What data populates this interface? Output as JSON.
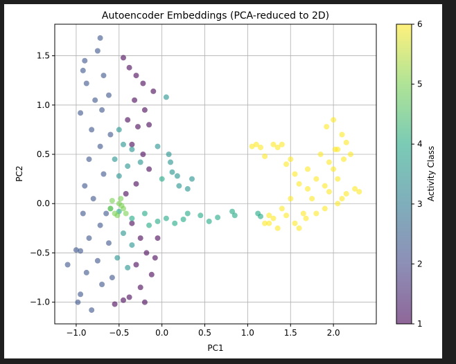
{
  "colors": {
    "frame_background": "#1f1f1f",
    "figure_background": "#ffffff",
    "grid": "#b0b0b0",
    "colormap": "viridis"
  },
  "chart_data": {
    "type": "scatter",
    "title": "Autoencoder Embeddings (PCA-reduced to 2D)",
    "xlabel": "PC1",
    "ylabel": "PC2",
    "xlim": [
      -1.25,
      2.5
    ],
    "ylim": [
      -1.22,
      1.82
    ],
    "xticks": [
      -1.0,
      -0.5,
      0.0,
      0.5,
      1.0,
      1.5,
      2.0
    ],
    "xtick_labels": [
      "−1.0",
      "−0.5",
      "0.0",
      "0.5",
      "1.0",
      "1.5",
      "2.0"
    ],
    "yticks": [
      -1.0,
      -0.5,
      0.0,
      0.5,
      1.0,
      1.5
    ],
    "ytick_labels": [
      "−1.0",
      "−0.5",
      "0.0",
      "0.5",
      "1.0",
      "1.5"
    ],
    "grid": true,
    "marker_alpha": 0.6,
    "colorbar": {
      "label": "Activity Class",
      "range": [
        1,
        6
      ],
      "ticks": [
        1,
        2,
        3,
        4,
        5,
        6
      ],
      "tick_labels": [
        "1",
        "2",
        "3",
        "4",
        "5",
        "6"
      ],
      "colormap": "viridis"
    },
    "series": [
      {
        "class": 1,
        "color": "#440154",
        "points": [
          [
            -0.45,
            1.48
          ],
          [
            -0.38,
            1.38
          ],
          [
            -0.3,
            1.3
          ],
          [
            -0.22,
            1.22
          ],
          [
            -0.1,
            1.14
          ],
          [
            -0.2,
            0.95
          ],
          [
            -0.28,
            0.78
          ],
          [
            -0.15,
            0.8
          ],
          [
            -0.35,
            0.6
          ],
          [
            -0.22,
            0.5
          ],
          [
            -0.15,
            0.35
          ],
          [
            -0.3,
            0.2
          ],
          [
            -0.42,
            0.1
          ],
          [
            -0.25,
            -0.35
          ],
          [
            -0.18,
            -0.5
          ],
          [
            -0.3,
            -0.62
          ],
          [
            -0.12,
            -0.72
          ],
          [
            -0.25,
            -0.85
          ],
          [
            -0.38,
            -0.95
          ],
          [
            -0.55,
            -1.02
          ],
          [
            -0.45,
            -0.98
          ],
          [
            -0.2,
            -1.0
          ],
          [
            -0.32,
            1.05
          ],
          [
            -0.4,
            0.85
          ],
          [
            -0.08,
            -0.55
          ],
          [
            -0.05,
            -0.35
          ],
          [
            -0.35,
            -0.2
          ]
        ]
      },
      {
        "class": 2,
        "color": "#3b528b",
        "points": [
          [
            -0.72,
            1.68
          ],
          [
            -0.75,
            1.55
          ],
          [
            -0.92,
            1.35
          ],
          [
            -0.88,
            1.22
          ],
          [
            -0.68,
            1.3
          ],
          [
            -0.78,
            1.05
          ],
          [
            -0.95,
            0.92
          ],
          [
            -0.82,
            0.75
          ],
          [
            -0.72,
            0.58
          ],
          [
            -0.85,
            0.45
          ],
          [
            -0.68,
            0.3
          ],
          [
            -0.9,
            0.18
          ],
          [
            -0.8,
            0.05
          ],
          [
            -0.92,
            -0.1
          ],
          [
            -0.72,
            -0.22
          ],
          [
            -0.85,
            -0.35
          ],
          [
            -0.95,
            -0.48
          ],
          [
            -0.75,
            -0.58
          ],
          [
            -0.88,
            -0.7
          ],
          [
            -0.7,
            -0.82
          ],
          [
            -0.95,
            -0.92
          ],
          [
            -1.0,
            -0.47
          ],
          [
            -0.98,
            -1.0
          ],
          [
            -0.82,
            -1.08
          ],
          [
            -1.1,
            -0.62
          ],
          [
            -0.62,
            1.1
          ],
          [
            -0.6,
            0.7
          ],
          [
            -0.65,
            -0.1
          ],
          [
            -0.62,
            -0.4
          ],
          [
            -0.58,
            -0.75
          ],
          [
            -0.9,
            1.45
          ],
          [
            -0.7,
            0.95
          ]
        ]
      },
      {
        "class": 3,
        "color": "#21918c",
        "points": [
          [
            -0.5,
            0.75
          ],
          [
            -0.45,
            0.6
          ],
          [
            -0.55,
            0.45
          ],
          [
            -0.4,
            0.38
          ],
          [
            -0.5,
            0.28
          ],
          [
            -0.35,
            0.55
          ],
          [
            -0.25,
            0.42
          ],
          [
            -0.45,
            -0.3
          ],
          [
            -0.35,
            -0.42
          ],
          [
            -0.52,
            -0.55
          ],
          [
            -0.4,
            -0.65
          ],
          [
            0.05,
            1.08
          ],
          [
            0.1,
            0.42
          ],
          [
            0.12,
            0.32
          ],
          [
            0.18,
            0.28
          ],
          [
            0.3,
            0.15
          ],
          [
            0.2,
            0.18
          ],
          [
            0.35,
            0.25
          ],
          [
            0.08,
            0.5
          ],
          [
            -0.05,
            0.58
          ]
        ]
      },
      {
        "class": 4,
        "color": "#22a884",
        "points": [
          [
            -0.6,
            -0.05
          ],
          [
            -0.5,
            -0.08
          ],
          [
            -0.35,
            -0.15
          ],
          [
            -0.2,
            -0.1
          ],
          [
            -0.05,
            -0.18
          ],
          [
            0.05,
            -0.15
          ],
          [
            0.15,
            -0.2
          ],
          [
            0.25,
            -0.16
          ],
          [
            0.3,
            -0.1
          ],
          [
            0.45,
            -0.12
          ],
          [
            0.55,
            -0.18
          ],
          [
            0.65,
            -0.14
          ],
          [
            0.82,
            -0.08
          ],
          [
            0.85,
            -0.12
          ],
          [
            0.0,
            0.25
          ],
          [
            1.12,
            -0.1
          ],
          [
            1.15,
            -0.13
          ],
          [
            -0.15,
            -0.22
          ]
        ]
      },
      {
        "class": 5,
        "color": "#7ad151",
        "points": [
          [
            -0.5,
            0.0
          ],
          [
            -0.45,
            -0.05
          ],
          [
            -0.55,
            -0.1
          ],
          [
            -0.48,
            0.05
          ],
          [
            -0.58,
            0.03
          ],
          [
            -0.42,
            -0.1
          ],
          [
            -0.52,
            -0.12
          ],
          [
            -0.6,
            -0.05
          ],
          [
            -0.47,
            -0.02
          ]
        ]
      },
      {
        "class": 6,
        "color": "#fde725",
        "points": [
          [
            1.05,
            0.58
          ],
          [
            1.1,
            0.6
          ],
          [
            1.15,
            0.57
          ],
          [
            1.3,
            0.6
          ],
          [
            1.35,
            0.57
          ],
          [
            1.4,
            0.6
          ],
          [
            1.2,
            0.48
          ],
          [
            1.45,
            0.4
          ],
          [
            1.55,
            0.3
          ],
          [
            1.6,
            0.2
          ],
          [
            1.7,
            0.15
          ],
          [
            1.8,
            0.25
          ],
          [
            1.9,
            0.18
          ],
          [
            2.0,
            0.35
          ],
          [
            2.05,
            0.55
          ],
          [
            2.0,
            0.85
          ],
          [
            2.1,
            0.7
          ],
          [
            2.15,
            0.62
          ],
          [
            2.12,
            0.45
          ],
          [
            2.25,
            0.15
          ],
          [
            2.3,
            0.12
          ],
          [
            1.85,
            0.5
          ],
          [
            1.95,
            0.42
          ],
          [
            1.7,
            0.35
          ],
          [
            1.5,
            0.05
          ],
          [
            1.4,
            -0.05
          ],
          [
            1.3,
            -0.15
          ],
          [
            1.2,
            -0.2
          ],
          [
            1.25,
            -0.2
          ],
          [
            1.45,
            -0.12
          ],
          [
            1.55,
            -0.2
          ],
          [
            1.6,
            -0.25
          ],
          [
            1.8,
            -0.1
          ],
          [
            1.9,
            -0.05
          ],
          [
            2.05,
            0.0
          ],
          [
            2.1,
            0.05
          ],
          [
            2.15,
            0.1
          ],
          [
            1.75,
            0.05
          ],
          [
            1.65,
            -0.1
          ],
          [
            1.35,
            -0.25
          ],
          [
            1.25,
            -0.12
          ],
          [
            1.95,
            0.12
          ],
          [
            2.05,
            0.25
          ],
          [
            1.92,
            0.78
          ],
          [
            2.02,
            0.55
          ],
          [
            1.5,
            0.45
          ],
          [
            1.68,
            -0.15
          ],
          [
            2.2,
            0.5
          ]
        ]
      }
    ]
  }
}
